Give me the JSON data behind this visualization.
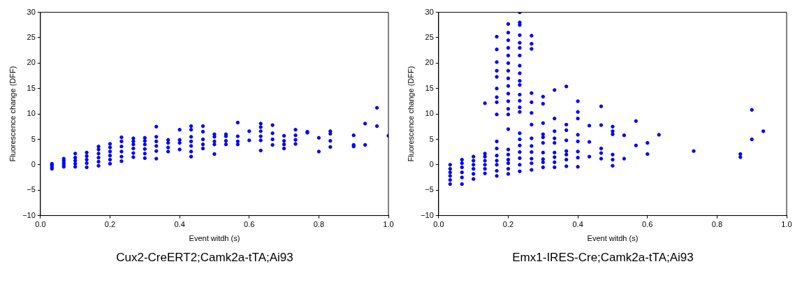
{
  "chart_data": [
    {
      "type": "scatter",
      "xlabel": "Event witdh (s)",
      "ylabel": "Fluorescence change (DFF)",
      "annotations": [
        "Cux2-CreERT2;Camk2a-tTA;Ai93"
      ],
      "marker": "circle",
      "grid": false,
      "xlim": [
        0,
        1
      ],
      "ylim": [
        -10,
        30
      ],
      "xticks": [
        {
          "value": 0,
          "label": "0.0"
        },
        {
          "value": 0.2,
          "label": "0.2"
        },
        {
          "value": 0.4,
          "label": "0.4"
        },
        {
          "value": 0.6,
          "label": "0.6"
        },
        {
          "value": 0.8,
          "label": "0.8"
        },
        {
          "value": 1,
          "label": "1.0"
        }
      ],
      "yticks": [
        -10,
        -5,
        0,
        5,
        10,
        15,
        20,
        25,
        30
      ],
      "series": [
        {
          "color": "#0000ff",
          "x": [
            0.033,
            0.033,
            0.033,
            0.033,
            0.033,
            0.067,
            0.067,
            0.067,
            0.067,
            0.067,
            0.1,
            0.1,
            0.1,
            0.1,
            0.1,
            0.133,
            0.133,
            0.133,
            0.133,
            0.133,
            0.167,
            0.167,
            0.167,
            0.167,
            0.167,
            0.167,
            0.2,
            0.2,
            0.2,
            0.2,
            0.2,
            0.2,
            0.233,
            0.233,
            0.233,
            0.233,
            0.233,
            0.233,
            0.267,
            0.267,
            0.267,
            0.267,
            0.267,
            0.267,
            0.3,
            0.3,
            0.3,
            0.3,
            0.3,
            0.3,
            0.333,
            0.333,
            0.333,
            0.333,
            0.333,
            0.333,
            0.367,
            0.367,
            0.367,
            0.367,
            0.4,
            0.4,
            0.4,
            0.4,
            0.433,
            0.433,
            0.433,
            0.433,
            0.433,
            0.433,
            0.433,
            0.467,
            0.467,
            0.467,
            0.467,
            0.467,
            0.5,
            0.5,
            0.5,
            0.5,
            0.5,
            0.533,
            0.533,
            0.533,
            0.533,
            0.567,
            0.567,
            0.567,
            0.567,
            0.6,
            0.6,
            0.633,
            0.633,
            0.633,
            0.633,
            0.633,
            0.633,
            0.667,
            0.667,
            0.667,
            0.667,
            0.7,
            0.7,
            0.7,
            0.7,
            0.733,
            0.733,
            0.733,
            0.733,
            0.767,
            0.767,
            0.8,
            0.8,
            0.833,
            0.833,
            0.833,
            0.833,
            0.9,
            0.9,
            0.9,
            0.933,
            0.933,
            0.967,
            0.967,
            1.0
          ],
          "values": [
            -0.8,
            -0.5,
            -0.2,
            0,
            0.2,
            -0.4,
            0,
            0.4,
            0.8,
            1.2,
            -0.4,
            0.2,
            0.8,
            1.4,
            2.2,
            -0.5,
            0.3,
            1,
            1.7,
            2.4,
            -0.2,
            0.6,
            1.4,
            2.2,
            3,
            3.6,
            0.2,
            1,
            1.8,
            2.6,
            3.4,
            4.1,
            0.7,
            1.6,
            2.6,
            3.6,
            4.6,
            5.4,
            1.5,
            2.3,
            3.2,
            4,
            4.6,
            5.2,
            1.3,
            2.2,
            3.1,
            4,
            4.7,
            5.3,
            1.2,
            2.7,
            3.7,
            4.6,
            5.5,
            7.5,
            2.6,
            3.4,
            4.3,
            4.9,
            3,
            4.3,
            4.9,
            6.9,
            1.6,
            2.6,
            3.7,
            4.6,
            5.5,
            6.9,
            7.6,
            3.2,
            4,
            5,
            6.5,
            7.6,
            2.1,
            4,
            4.6,
            5.5,
            6,
            4,
            4.7,
            5.6,
            6,
            4,
            4.6,
            5.6,
            8.3,
            4.8,
            6.6,
            2.8,
            4.8,
            5.6,
            6.6,
            7.4,
            8.1,
            3.9,
            5,
            6.2,
            7.8,
            3.2,
            4,
            4.7,
            5.7,
            4.1,
            4.9,
            5.8,
            6.9,
            6.3,
            6.5,
            2.6,
            5.3,
            3.5,
            4.7,
            6.1,
            6.6,
            3.6,
            3.9,
            5.8,
            3.9,
            8.1,
            7.6,
            11.2,
            5.7
          ]
        }
      ]
    },
    {
      "type": "scatter",
      "xlabel": "Event witdh (s)",
      "ylabel": "Fluorescence change (DFF)",
      "annotations": [
        "Emx1-IRES-Cre;Camk2a-tTA;Ai93"
      ],
      "marker": "circle",
      "grid": false,
      "xlim": [
        0,
        1
      ],
      "ylim": [
        -10,
        30
      ],
      "xticks": [
        {
          "value": 0,
          "label": "0.0"
        },
        {
          "value": 0.2,
          "label": "0.2"
        },
        {
          "value": 0.4,
          "label": "0.4"
        },
        {
          "value": 0.6,
          "label": "0.6"
        },
        {
          "value": 0.8,
          "label": "0.8"
        },
        {
          "value": 1,
          "label": "1.0"
        }
      ],
      "yticks": [
        -10,
        -5,
        0,
        5,
        10,
        15,
        20,
        25,
        30
      ],
      "series": [
        {
          "color": "#0000ff",
          "x": [
            0.033,
            0.033,
            0.033,
            0.033,
            0.033,
            0.033,
            0.067,
            0.067,
            0.067,
            0.067,
            0.067,
            0.067,
            0.1,
            0.1,
            0.1,
            0.1,
            0.1,
            0.1,
            0.133,
            0.133,
            0.133,
            0.133,
            0.133,
            0.133,
            0.133,
            0.167,
            0.167,
            0.167,
            0.167,
            0.167,
            0.167,
            0.167,
            0.167,
            0.167,
            0.167,
            0.167,
            0.167,
            0.167,
            0.167,
            0.167,
            0.167,
            0.2,
            0.2,
            0.2,
            0.2,
            0.2,
            0.2,
            0.2,
            0.2,
            0.2,
            0.2,
            0.2,
            0.2,
            0.2,
            0.2,
            0.2,
            0.2,
            0.2,
            0.2,
            0.2,
            0.2,
            0.233,
            0.233,
            0.233,
            0.233,
            0.233,
            0.233,
            0.233,
            0.233,
            0.233,
            0.233,
            0.233,
            0.233,
            0.233,
            0.233,
            0.233,
            0.233,
            0.233,
            0.233,
            0.233,
            0.233,
            0.233,
            0.233,
            0.267,
            0.267,
            0.267,
            0.267,
            0.267,
            0.267,
            0.267,
            0.267,
            0.267,
            0.267,
            0.267,
            0.267,
            0.267,
            0.3,
            0.3,
            0.3,
            0.3,
            0.3,
            0.3,
            0.3,
            0.3,
            0.3,
            0.3,
            0.333,
            0.333,
            0.333,
            0.333,
            0.333,
            0.333,
            0.333,
            0.333,
            0.333,
            0.367,
            0.367,
            0.367,
            0.367,
            0.367,
            0.367,
            0.367,
            0.367,
            0.4,
            0.4,
            0.4,
            0.4,
            0.4,
            0.4,
            0.4,
            0.4,
            0.433,
            0.433,
            0.433,
            0.467,
            0.467,
            0.467,
            0.467,
            0.467,
            0.5,
            0.5,
            0.5,
            0.5,
            0.5,
            0.5,
            0.533,
            0.533,
            0.567,
            0.567,
            0.6,
            0.6,
            0.633,
            0.733,
            0.867,
            0.867,
            0.9,
            0.9,
            0.933
          ],
          "values": [
            -3.8,
            -3,
            -2.2,
            -1.5,
            -0.8,
            0,
            -3.8,
            -2.5,
            -1.5,
            -0.5,
            0.3,
            1,
            -2.8,
            -1.8,
            -0.8,
            0,
            0.8,
            1.6,
            -1.7,
            -0.8,
            0,
            0.8,
            1.6,
            2.2,
            12.1,
            -2.2,
            -1.2,
            0,
            0.8,
            1.8,
            3.2,
            4.6,
            9.9,
            12.3,
            13.3,
            15,
            17.3,
            18.5,
            20.2,
            22.7,
            25.2,
            -1.8,
            -0.8,
            0.3,
            1,
            2,
            3,
            7,
            9.9,
            11,
            12.5,
            14,
            15.5,
            17,
            18.5,
            20,
            21.5,
            23,
            24.5,
            26,
            27.7,
            -1.3,
            0,
            1.3,
            2.5,
            3.8,
            5,
            6.2,
            10.4,
            11.3,
            12.6,
            13.8,
            15.7,
            16.5,
            18,
            19.5,
            21.5,
            23,
            24,
            25.5,
            27.5,
            28,
            30,
            -1,
            0.3,
            1.2,
            2.5,
            3.7,
            5.2,
            7.9,
            10.2,
            12.3,
            14.1,
            22.8,
            23.8,
            25.4,
            -0.5,
            0.5,
            1.1,
            2.4,
            4.3,
            5.4,
            6,
            8.2,
            12,
            13.4,
            -0.5,
            0.5,
            1.5,
            2.4,
            4.3,
            5.2,
            6.6,
            9.1,
            14.7,
            -0.3,
            1,
            2,
            2.7,
            4.8,
            6.8,
            7.9,
            15.4,
            -0.4,
            1.4,
            2.6,
            4.6,
            5.9,
            9.1,
            10.4,
            12.5,
            1.6,
            4.5,
            7.7,
            1.2,
            2.3,
            3.2,
            7.8,
            11.5,
            -0.2,
            1,
            2,
            6,
            6.6,
            7.5,
            1.2,
            5.8,
            3.8,
            8.6,
            2.1,
            4.3,
            5.9,
            2.7,
            1.5,
            2.1,
            5,
            10.8,
            6.6
          ]
        }
      ]
    }
  ]
}
